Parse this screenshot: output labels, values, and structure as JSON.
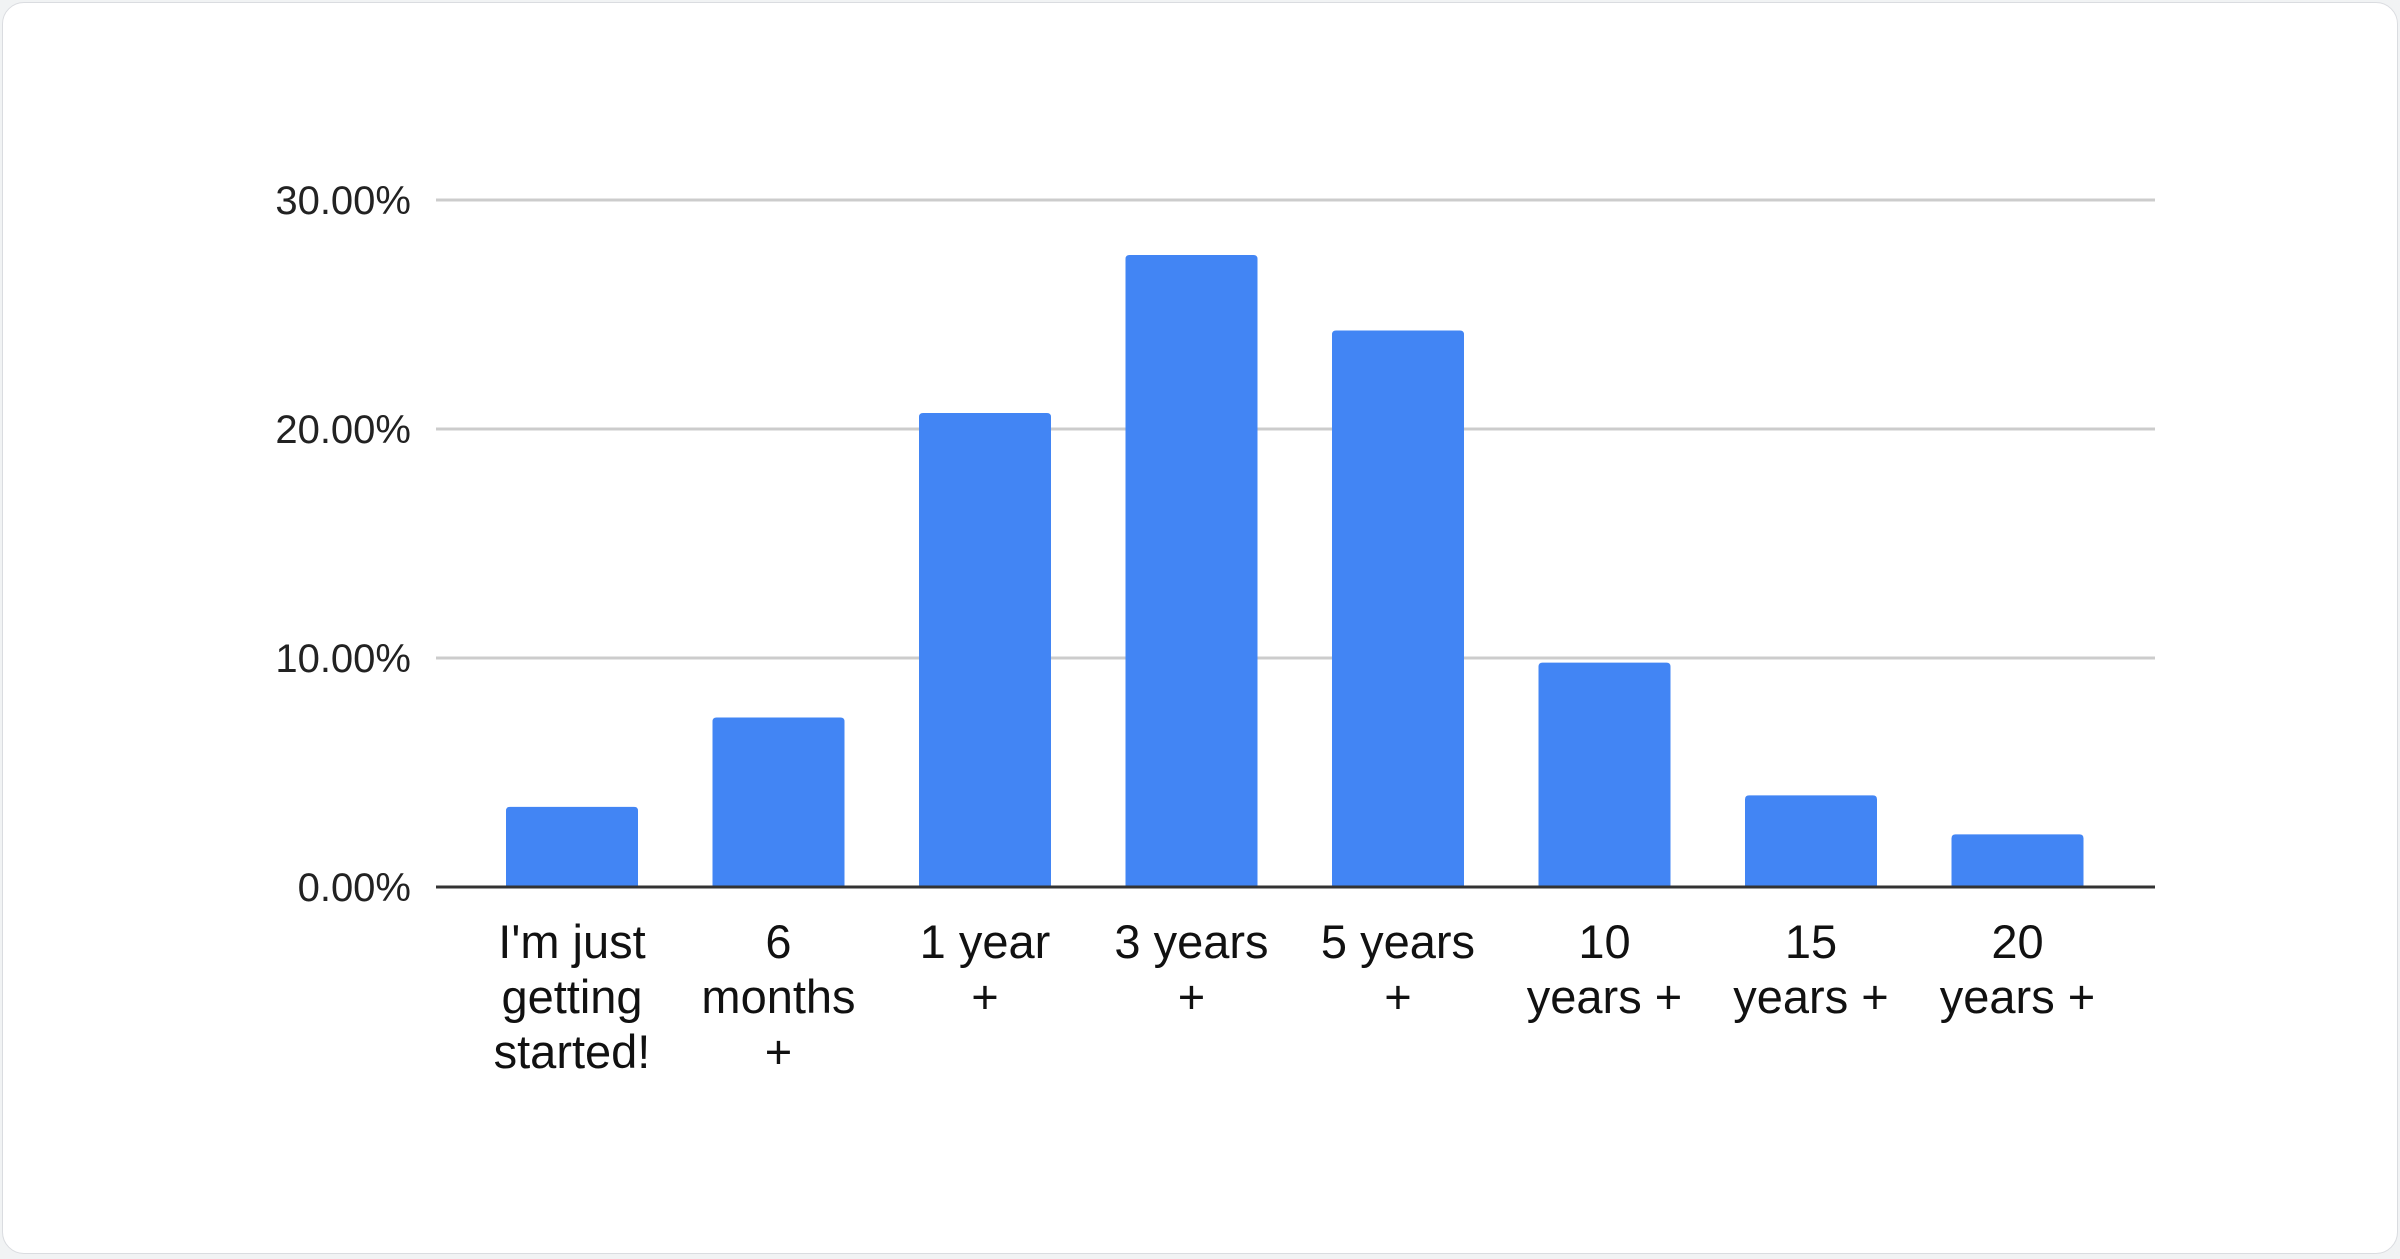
{
  "chart_data": {
    "type": "bar",
    "title": "",
    "xlabel": "",
    "ylabel": "",
    "categories": [
      [
        "I'm just",
        "getting",
        "started!"
      ],
      [
        "6",
        "months",
        "+"
      ],
      [
        "1 year",
        "+"
      ],
      [
        "3 years",
        "+"
      ],
      [
        "5 years",
        "+"
      ],
      [
        "10",
        "years +"
      ],
      [
        "15",
        "years +"
      ],
      [
        "20",
        "years +"
      ]
    ],
    "values": [
      3.5,
      7.4,
      20.7,
      27.6,
      24.3,
      9.8,
      4.0,
      2.3
    ],
    "ylim": [
      0,
      30
    ],
    "yticks": [
      0,
      10,
      20,
      30
    ],
    "ytick_labels": [
      "0.00%",
      "10.00%",
      "20.00%",
      "30.00%"
    ],
    "grid": true,
    "legend": "none",
    "bar_color": "#4285f4",
    "grid_color": "#cccccc",
    "axis_color": "#333333"
  }
}
